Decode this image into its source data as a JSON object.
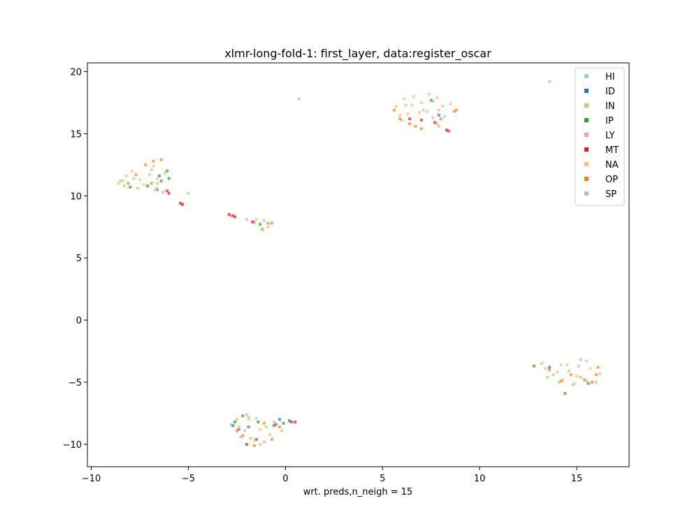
{
  "chart_data": {
    "type": "scatter",
    "title": "xlmr-long-fold-1: first_layer, data:register_oscar",
    "xlabel": "wrt. preds,n_neigh = 15",
    "ylabel": "",
    "xlim": [
      -10.2,
      17.7
    ],
    "ylim": [
      -11.8,
      20.7
    ],
    "xticks": [
      -10,
      -5,
      0,
      5,
      10,
      15
    ],
    "xtick_labels": [
      "−10",
      "−5",
      "0",
      "5",
      "10",
      "15"
    ],
    "yticks": [
      -10,
      -5,
      0,
      5,
      10,
      15,
      20
    ],
    "ytick_labels": [
      "−10",
      "−5",
      "0",
      "5",
      "10",
      "15",
      "20"
    ],
    "grid": false,
    "legend_position": "top-right",
    "series": [
      {
        "name": "HI",
        "color": "#9ecae1",
        "points": [
          [
            -7.8,
            11.4
          ],
          [
            -6.9,
            12.1
          ],
          [
            6.2,
            17.3
          ],
          [
            7.1,
            16.9
          ],
          [
            8.2,
            16.4
          ],
          [
            7.6,
            17.6
          ],
          [
            14.2,
            -3.6
          ],
          [
            15.5,
            -3.3
          ],
          [
            13.8,
            -4.4
          ],
          [
            -2.8,
            -8.4
          ],
          [
            -2.1,
            -8.9
          ],
          [
            -0.6,
            -8.2
          ],
          [
            -1.5,
            -7.9
          ],
          [
            -1.1,
            8.0
          ]
        ]
      },
      {
        "name": "ID",
        "color": "#1f77b4",
        "points": [
          [
            -2.7,
            -8.5
          ],
          [
            -2.4,
            -8.8
          ],
          [
            -0.3,
            -8.0
          ],
          [
            0.2,
            -8.1
          ],
          [
            7.9,
            16.5
          ],
          [
            -6.5,
            11.6
          ],
          [
            13.6,
            -3.8
          ]
        ]
      },
      {
        "name": "IN",
        "color": "#a6d96a",
        "points": [
          [
            -8.3,
            10.8
          ],
          [
            -7.6,
            10.6
          ],
          [
            -6.6,
            11.0
          ],
          [
            -6.2,
            11.8
          ],
          [
            -8.5,
            11.2
          ],
          [
            -5.0,
            10.2
          ],
          [
            0.7,
            17.8
          ],
          [
            6.0,
            16.1
          ],
          [
            7.8,
            15.8
          ],
          [
            13.5,
            -4.6
          ],
          [
            14.1,
            -5.0
          ],
          [
            14.8,
            -5.2
          ],
          [
            15.5,
            -4.9
          ],
          [
            16.0,
            -5.0
          ],
          [
            13.2,
            -3.5
          ],
          [
            14.6,
            -4.1
          ],
          [
            15.1,
            -3.7
          ],
          [
            -2.5,
            -8.0
          ],
          [
            -1.8,
            -9.5
          ],
          [
            -1.0,
            -8.6
          ],
          [
            -0.2,
            -8.9
          ],
          [
            -1.3,
            -10.0
          ],
          [
            -2.0,
            -7.6
          ],
          [
            -1.6,
            7.8
          ]
        ]
      },
      {
        "name": "IP",
        "color": "#2ca02c",
        "points": [
          [
            -8.0,
            10.7
          ],
          [
            -6.4,
            11.2
          ],
          [
            -6.0,
            11.4
          ],
          [
            -6.1,
            12.0
          ],
          [
            -7.1,
            10.8
          ],
          [
            -6.6,
            10.5
          ],
          [
            -2.6,
            -8.2
          ],
          [
            -2.2,
            -7.7
          ],
          [
            -1.4,
            -8.2
          ],
          [
            -0.6,
            -8.5
          ],
          [
            -0.1,
            -8.3
          ],
          [
            -1.9,
            -8.6
          ],
          [
            14.4,
            -5.9
          ],
          [
            12.8,
            -3.7
          ],
          [
            15.6,
            -5.1
          ],
          [
            -1.3,
            7.7
          ],
          [
            7.5,
            17.7
          ]
        ]
      },
      {
        "name": "LY",
        "color": "#f4a09b",
        "points": [
          [
            13.6,
            19.2
          ],
          [
            -6.3,
            10.3
          ],
          [
            -6.7,
            10.5
          ],
          [
            -5.4,
            9.4
          ],
          [
            7.9,
            15.6
          ],
          [
            -2.8,
            8.4
          ],
          [
            -1.6,
            7.9
          ],
          [
            -1.1,
            -9.8
          ],
          [
            -2.3,
            -9.4
          ],
          [
            15.2,
            -4.6
          ]
        ]
      },
      {
        "name": "MT",
        "color": "#e31a1c",
        "points": [
          [
            -6.1,
            10.4
          ],
          [
            -6.0,
            10.2
          ],
          [
            -5.4,
            9.4
          ],
          [
            -5.3,
            9.3
          ],
          [
            -2.7,
            8.4
          ],
          [
            -2.6,
            8.3
          ],
          [
            -2.9,
            8.5
          ],
          [
            -1.7,
            7.9
          ],
          [
            6.4,
            16.2
          ],
          [
            7.0,
            16.1
          ],
          [
            7.7,
            15.9
          ],
          [
            8.3,
            15.3
          ],
          [
            8.4,
            15.2
          ],
          [
            -2.0,
            -10.0
          ],
          [
            -1.5,
            -9.6
          ],
          [
            0.3,
            -8.2
          ],
          [
            0.5,
            -8.2
          ],
          [
            -0.5,
            -8.4
          ]
        ]
      },
      {
        "name": "NA",
        "color": "#fdbf6f",
        "points": [
          [
            -8.6,
            11.0
          ],
          [
            -8.2,
            11.6
          ],
          [
            -7.9,
            12.0
          ],
          [
            -7.5,
            11.3
          ],
          [
            -7.0,
            11.7
          ],
          [
            -6.8,
            12.4
          ],
          [
            -7.3,
            10.9
          ],
          [
            -6.6,
            11.4
          ],
          [
            -8.4,
            11.2
          ],
          [
            5.7,
            17.2
          ],
          [
            6.1,
            17.8
          ],
          [
            6.6,
            18.0
          ],
          [
            7.0,
            17.5
          ],
          [
            7.4,
            18.2
          ],
          [
            7.8,
            17.9
          ],
          [
            8.1,
            17.2
          ],
          [
            6.3,
            16.6
          ],
          [
            5.9,
            16.5
          ],
          [
            6.9,
            16.7
          ],
          [
            7.3,
            16.8
          ],
          [
            7.9,
            16.9
          ],
          [
            8.5,
            17.4
          ],
          [
            6.5,
            17.3
          ],
          [
            13.4,
            -3.9
          ],
          [
            14.0,
            -4.2
          ],
          [
            14.5,
            -3.6
          ],
          [
            15.0,
            -4.5
          ],
          [
            15.7,
            -3.9
          ],
          [
            16.2,
            -4.3
          ],
          [
            14.3,
            -4.8
          ],
          [
            14.9,
            -5.1
          ],
          [
            -2.4,
            -8.6
          ],
          [
            -1.9,
            -8.0
          ],
          [
            -1.3,
            -8.8
          ],
          [
            -0.8,
            -9.2
          ],
          [
            -1.6,
            -9.7
          ],
          [
            -0.9,
            7.5
          ],
          [
            -1.5,
            8.1
          ]
        ]
      },
      {
        "name": "OP",
        "color": "#ff7f0e",
        "points": [
          [
            -6.8,
            12.8
          ],
          [
            -6.4,
            12.9
          ],
          [
            -7.2,
            12.5
          ],
          [
            -7.7,
            11.7
          ],
          [
            -8.1,
            11.0
          ],
          [
            -6.9,
            11.0
          ],
          [
            8.7,
            16.8
          ],
          [
            8.8,
            16.9
          ],
          [
            5.6,
            16.9
          ],
          [
            5.9,
            16.2
          ],
          [
            6.4,
            15.8
          ],
          [
            6.7,
            15.6
          ],
          [
            7.0,
            15.4
          ],
          [
            8.0,
            16.2
          ],
          [
            13.6,
            -4.0
          ],
          [
            14.2,
            -4.9
          ],
          [
            15.4,
            -4.8
          ],
          [
            16.0,
            -4.4
          ],
          [
            16.1,
            -3.8
          ],
          [
            15.8,
            -5.0
          ],
          [
            14.7,
            -4.4
          ],
          [
            -2.2,
            -9.3
          ],
          [
            -1.6,
            -10.1
          ],
          [
            -0.7,
            -9.6
          ],
          [
            -2.5,
            -8.9
          ],
          [
            -0.3,
            -8.6
          ],
          [
            -1.1,
            -8.3
          ],
          [
            -1.2,
            7.3
          ],
          [
            -0.9,
            7.8
          ],
          [
            -0.7,
            7.8
          ]
        ]
      },
      {
        "name": "SP",
        "color": "#cab2d6",
        "points": [
          [
            -6.6,
            10.6
          ],
          [
            7.6,
            16.3
          ],
          [
            -2.0,
            8.1
          ],
          [
            -1.9,
            -7.8
          ],
          [
            15.2,
            -3.2
          ]
        ]
      }
    ]
  }
}
